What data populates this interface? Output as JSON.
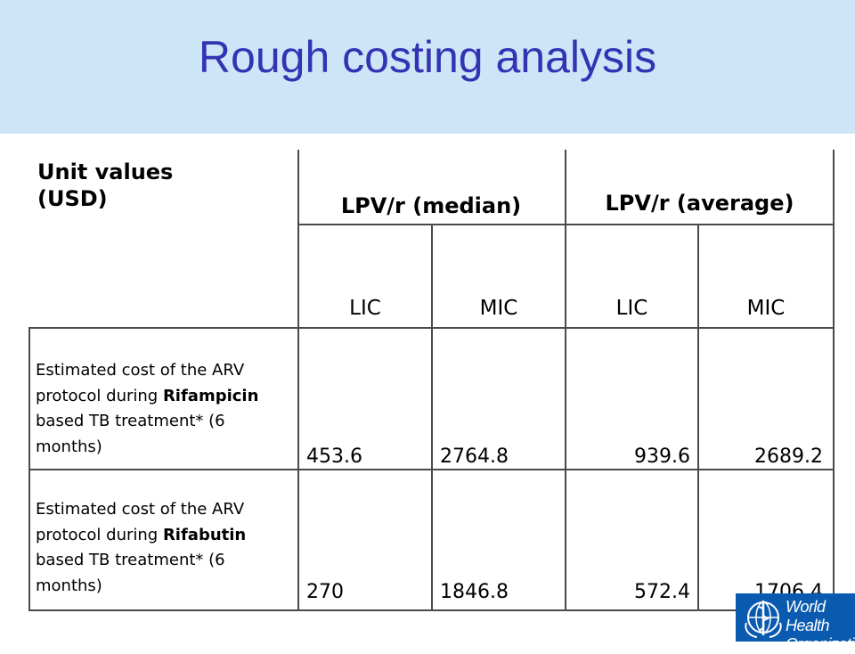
{
  "slide": {
    "title": "Rough costing analysis"
  },
  "table": {
    "corner_label": "Unit values (USD)",
    "groups": [
      "LPV/r (median)",
      "LPV/r (average)"
    ],
    "subheaders": [
      "LIC",
      "MIC",
      "LIC",
      "MIC"
    ],
    "rows": [
      {
        "desc_pre": "Estimated cost of the ARV protocol during ",
        "desc_bold": "Rifampicin",
        "desc_post": " based TB treatment* (6 months)",
        "values": [
          "453.6",
          "2764.8",
          "939.6",
          "2689.2"
        ]
      },
      {
        "desc_pre": "Estimated cost of the ARV protocol during ",
        "desc_bold": "Rifabutin",
        "desc_post": " based TB treatment* (6 months)",
        "values": [
          "270",
          "1846.8",
          "572.4",
          "1706.4"
        ]
      }
    ]
  },
  "logo": {
    "line1": "World Health",
    "line2": "Organization",
    "emblem": "who-emblem-icon",
    "color": "#0a5bb0"
  }
}
